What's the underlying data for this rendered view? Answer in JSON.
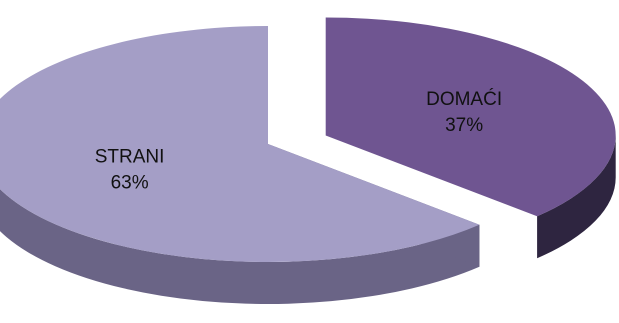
{
  "chart_data": {
    "type": "pie",
    "style": "3d-exploded",
    "slices": [
      {
        "label": "DOMAĆI",
        "value": 37,
        "percent_label": "37%",
        "color": "#6f5591",
        "side_color": "#2e2540"
      },
      {
        "label": "STRANI",
        "value": 63,
        "percent_label": "63%",
        "color": "#a49ec6",
        "side_color": "#6a6486"
      }
    ],
    "legend": "none",
    "data_labels": "inside"
  }
}
